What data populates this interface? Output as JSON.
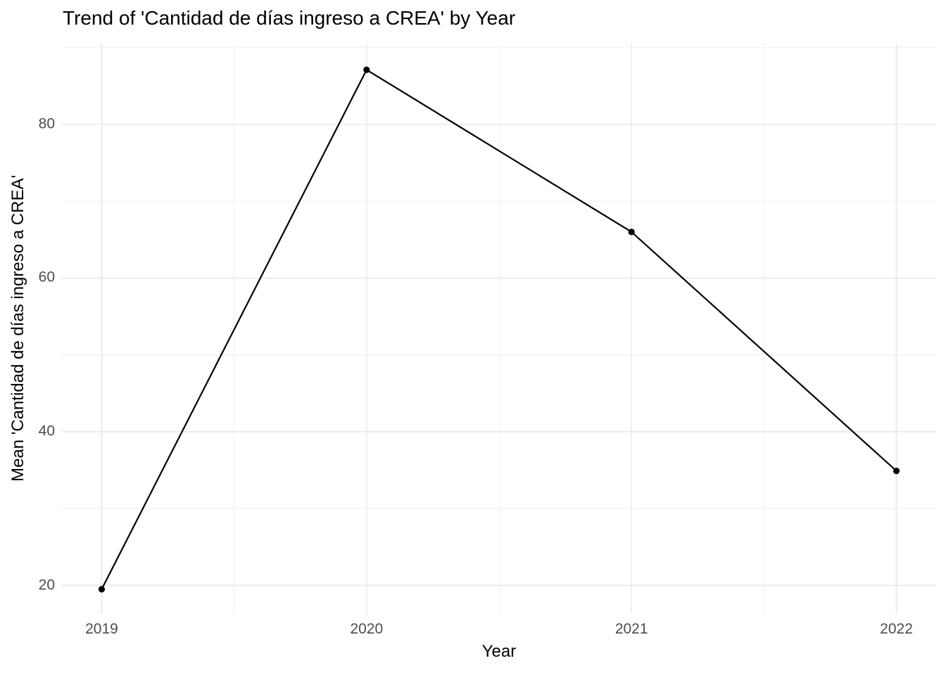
{
  "chart_data": {
    "type": "line",
    "title": "Trend of 'Cantidad de días ingreso a CREA' by Year",
    "xlabel": "Year",
    "ylabel": "Mean 'Cantidad de días ingreso a CREA'",
    "x": [
      2019,
      2020,
      2021,
      2022
    ],
    "values": [
      19.5,
      87.1,
      66,
      34.9
    ],
    "x_ticks": [
      2019,
      2020,
      2021,
      2022
    ],
    "x_tick_labels": [
      "2019",
      "2020",
      "2021",
      "2022"
    ],
    "y_ticks": [
      20,
      40,
      60,
      80
    ],
    "y_tick_labels": [
      "20",
      "40",
      "60",
      "80"
    ],
    "x_minor": [
      2019.5,
      2020.5,
      2021.5
    ],
    "y_minor": [
      30,
      50,
      70,
      90
    ],
    "xlim": [
      2018.85,
      2022.15
    ],
    "ylim": [
      16.3,
      90.6
    ],
    "grid": true,
    "legend_position": "none",
    "colors": {
      "line": "#000000",
      "point": "#000000",
      "grid_major": "#EBEBEB",
      "grid_minor": "#F1F1F1",
      "tick_label": "#4D4D4D",
      "title": "#000000",
      "background": "#FFFFFF"
    },
    "point_radius": 4.6,
    "line_width": 2.2
  }
}
